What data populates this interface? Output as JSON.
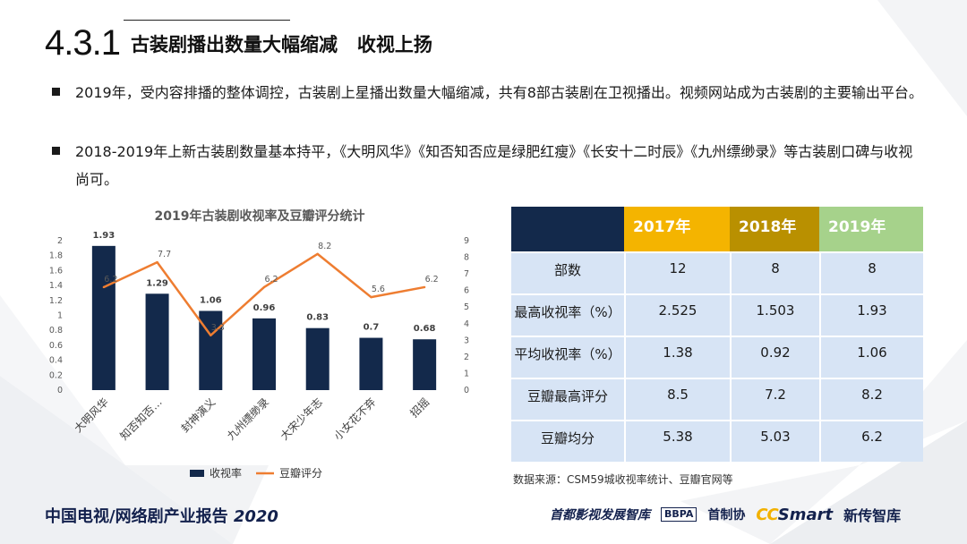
{
  "header": {
    "section_number": "4.3.1",
    "section_title": "古装剧播出数量大幅缩减   收视上扬"
  },
  "bullets": [
    {
      "text": "2019年，受内容排播的整体调控，古装剧上星播出数量大幅缩减，共有8部古装剧在卫视播出。视频网站成为古装剧的主要输出平台。"
    },
    {
      "text": "2018-2019年上新古装剧数量基本持平，《大明风华》《知否知否应是绿肥红瘦》《长安十二时辰》《九州缥缈录》等古装剧口碑与收视尚可。"
    }
  ],
  "chart_data": {
    "type": "bar",
    "title": "2019年古装剧收视率及豆瓣评分统计",
    "categories": [
      "大明风华",
      "知否知否…",
      "封神演义",
      "九州缥缈录",
      "大宋少年志",
      "小女花不弃",
      "招摇"
    ],
    "series": [
      {
        "name": "收视率",
        "type": "bar",
        "axis": "left",
        "color": "#13294b",
        "values": [
          1.93,
          1.29,
          1.06,
          0.96,
          0.83,
          0.7,
          0.68
        ],
        "labels": [
          "1.93",
          "1.29",
          "1.06",
          "0.96",
          "0.83",
          "0.7",
          "0.68"
        ]
      },
      {
        "name": "豆瓣评分",
        "type": "line",
        "axis": "right",
        "color": "#ee7d31",
        "values": [
          6.2,
          7.7,
          3.3,
          6.2,
          8.2,
          5.6,
          6.2
        ],
        "labels": [
          "6.2",
          "7.7",
          "3.3",
          "6.2",
          "8.2",
          "5.6",
          "6.2"
        ]
      }
    ],
    "left_axis": {
      "min": 0,
      "max": 2,
      "ticks": [
        "0",
        "0.2",
        "0.4",
        "0.6",
        "0.8",
        "1",
        "1.2",
        "1.4",
        "1.6",
        "1.8",
        "2"
      ]
    },
    "right_axis": {
      "min": 0,
      "max": 9,
      "ticks": [
        "0",
        "1",
        "2",
        "3",
        "4",
        "5",
        "6",
        "7",
        "8",
        "9"
      ]
    },
    "grid": false,
    "legend": "bottom"
  },
  "table": {
    "years": [
      "2017年",
      "2018年",
      "2019年"
    ],
    "header_colors": [
      "#f4b400",
      "#b99000",
      "#a6d28b"
    ],
    "rows": [
      {
        "label": "部数",
        "values": [
          "12",
          "8",
          "8"
        ]
      },
      {
        "label": "最高收视率（%）",
        "values": [
          "2.525",
          "1.503",
          "1.93"
        ]
      },
      {
        "label": "平均收视率（%）",
        "values": [
          "1.38",
          "0.92",
          "1.06"
        ]
      },
      {
        "label": "豆瓣最高评分",
        "values": [
          "8.5",
          "7.2",
          "8.2"
        ]
      },
      {
        "label": "豆瓣均分",
        "values": [
          "5.38",
          "5.03",
          "6.2"
        ]
      }
    ],
    "source": "数据来源：CSM59城收视率统计、豆瓣官网等"
  },
  "footer": {
    "report_title": "中国电视/网络剧产业报告",
    "report_year": "2020",
    "logo_1": "首都影视发展智库",
    "logo_2_box": "BBPA",
    "logo_2_text": "首制协",
    "logo_3_cc": "CC",
    "logo_3_smart": "Smart",
    "logo_3_text": "新传智库"
  }
}
